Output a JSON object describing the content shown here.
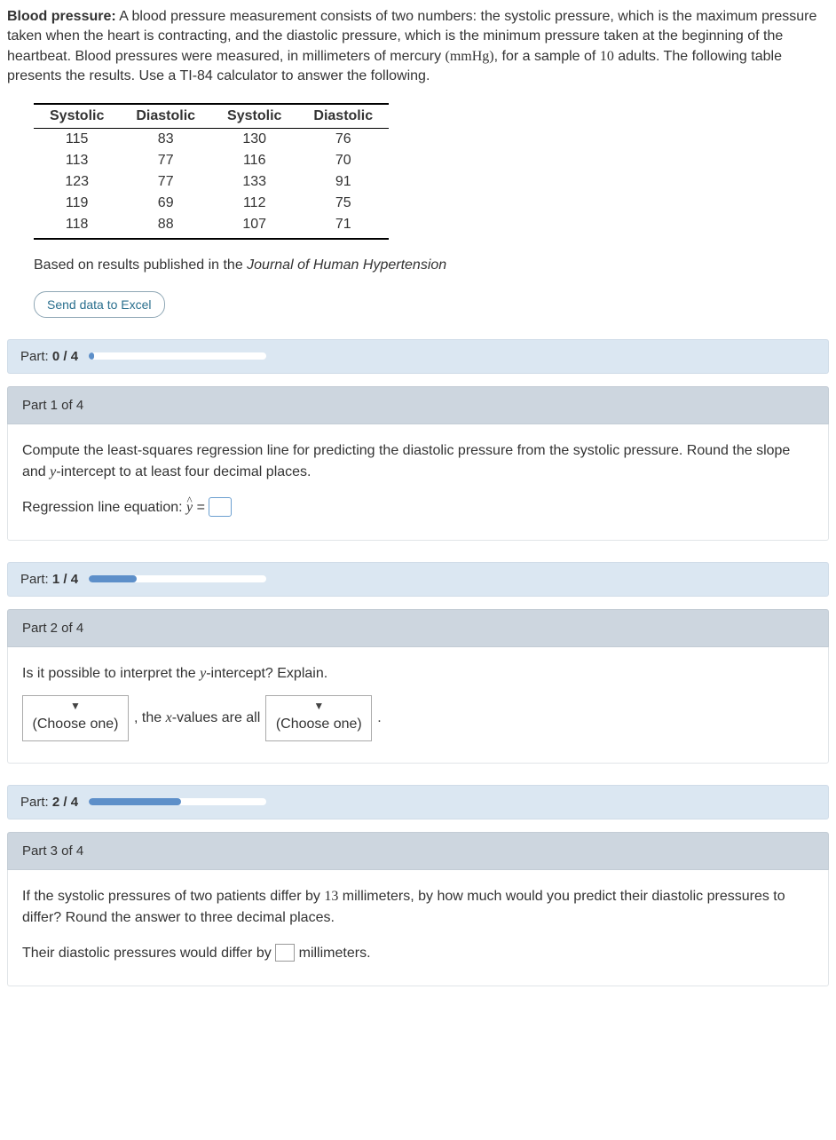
{
  "intro": {
    "label": "Blood pressure:",
    "text_1": " A blood pressure measurement consists of two numbers: the systolic pressure, which is the maximum pressure taken when the heart is contracting, and the diastolic pressure, which is the minimum pressure taken at the beginning of the heartbeat. Blood pressures were measured, in millimeters of mercury ",
    "unit": "(mmHg)",
    "text_2": ", for a sample of ",
    "count": "10",
    "text_3": " adults. The following table presents the results. Use a TI-84 calculator to answer the following."
  },
  "table": {
    "headers": [
      "Systolic",
      "Diastolic",
      "Systolic",
      "Diastolic"
    ],
    "rows": [
      [
        "115",
        "83",
        "130",
        "76"
      ],
      [
        "113",
        "77",
        "116",
        "70"
      ],
      [
        "123",
        "77",
        "133",
        "91"
      ],
      [
        "119",
        "69",
        "112",
        "75"
      ],
      [
        "118",
        "88",
        "107",
        "71"
      ]
    ]
  },
  "caption": {
    "prefix": "Based on results published in the ",
    "journal": "Journal of Human Hypertension"
  },
  "excel_button": "Send data to Excel",
  "progress": [
    {
      "label_pre": "Part: ",
      "label_bold": "0 / 4",
      "fill_pct": 3
    },
    {
      "label_pre": "Part: ",
      "label_bold": "1 / 4",
      "fill_pct": 27
    },
    {
      "label_pre": "Part: ",
      "label_bold": "2 / 4",
      "fill_pct": 52
    }
  ],
  "parts": {
    "p1": {
      "header": "Part 1 of 4",
      "body_1": "Compute the least-squares regression line for predicting the diastolic pressure from the systolic pressure. Round the slope and ",
      "body_var1": "y",
      "body_2": "-intercept to at least four decimal places.",
      "eq_label": "Regression line equation: ",
      "eq_var": "y",
      "eq_equals": " = "
    },
    "p2": {
      "header": "Part 2 of 4",
      "body_1": "Is it possible to interpret the ",
      "body_var1": "y",
      "body_2": "-intercept? Explain.",
      "dd1": "(Choose one)",
      "mid_1": ", the ",
      "mid_var": "x",
      "mid_2": "-values are all",
      "dd2": "(Choose one)",
      "end": "."
    },
    "p3": {
      "header": "Part 3 of 4",
      "body_1": "If the systolic pressures of two patients differ by ",
      "diff_n": "13",
      "body_2": " millimeters, by how much would you predict their diastolic pressures to differ? Round the answer to three decimal places.",
      "ans_pre": "Their diastolic pressures would differ by ",
      "ans_post": " millimeters."
    }
  },
  "colors": {
    "progress_bg": "#dbe7f2",
    "progress_fill": "#5d8fc9",
    "part_header_bg": "#cdd6df",
    "excel_text": "#2a6f8e"
  }
}
